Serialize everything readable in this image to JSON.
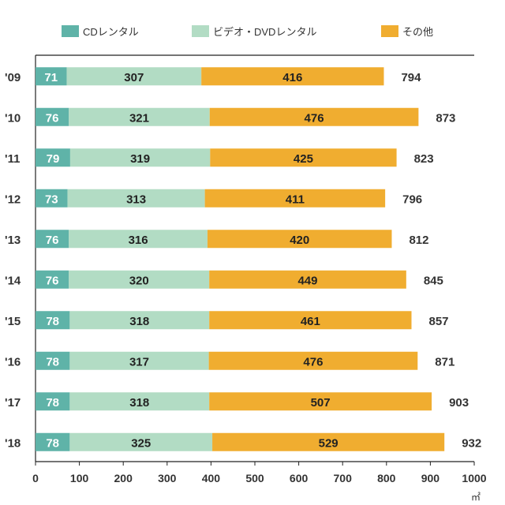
{
  "chart_data": {
    "type": "bar",
    "orientation": "horizontal",
    "stacked": true,
    "categories": [
      "'09",
      "'10",
      "'11",
      "'12",
      "'13",
      "'14",
      "'15",
      "'16",
      "'17",
      "'18"
    ],
    "series": [
      {
        "name": "CDレンタル",
        "color": "#5fb3a8",
        "values": [
          71,
          76,
          79,
          73,
          76,
          76,
          78,
          78,
          78,
          78
        ]
      },
      {
        "name": "ビデオ・DVDレンタル",
        "color": "#b2dcc4",
        "values": [
          307,
          321,
          319,
          313,
          316,
          320,
          318,
          317,
          318,
          325
        ]
      },
      {
        "name": "その他",
        "color": "#f0ad30",
        "values": [
          416,
          476,
          425,
          411,
          420,
          449,
          461,
          476,
          507,
          529
        ]
      }
    ],
    "totals": [
      794,
      873,
      823,
      796,
      812,
      845,
      857,
      871,
      903,
      932
    ],
    "xticks": [
      0,
      100,
      200,
      300,
      400,
      500,
      600,
      700,
      800,
      900,
      1000
    ],
    "xlim": [
      0,
      1000
    ],
    "unit": "㎡",
    "legend_position": "top"
  }
}
